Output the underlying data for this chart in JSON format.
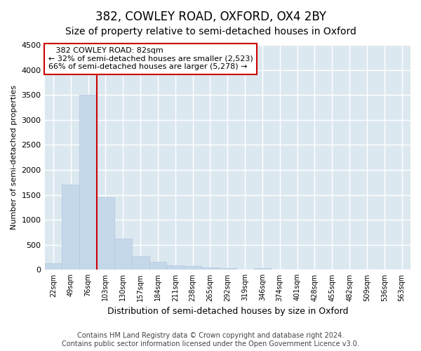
{
  "title": "382, COWLEY ROAD, OXFORD, OX4 2BY",
  "subtitle": "Size of property relative to semi-detached houses in Oxford",
  "xlabel": "Distribution of semi-detached houses by size in Oxford",
  "ylabel": "Number of semi-detached properties",
  "categories": [
    "22sqm",
    "49sqm",
    "76sqm",
    "103sqm",
    "130sqm",
    "157sqm",
    "184sqm",
    "211sqm",
    "238sqm",
    "265sqm",
    "292sqm",
    "319sqm",
    "346sqm",
    "374sqm",
    "401sqm",
    "428sqm",
    "455sqm",
    "482sqm",
    "509sqm",
    "536sqm",
    "563sqm"
  ],
  "values": [
    130,
    1700,
    3500,
    1450,
    620,
    270,
    160,
    90,
    75,
    50,
    40,
    0,
    40,
    0,
    0,
    0,
    0,
    0,
    0,
    0,
    0
  ],
  "bar_color": "#c5d8ea",
  "bar_edge_color": "#b0c8dc",
  "red_line_index": 2,
  "annotation_title": "382 COWLEY ROAD: 82sqm",
  "annotation_line1": "← 32% of semi-detached houses are smaller (2,523)",
  "annotation_line2": "66% of semi-detached houses are larger (5,278) →",
  "ylim": [
    0,
    4500
  ],
  "yticks": [
    0,
    500,
    1000,
    1500,
    2000,
    2500,
    3000,
    3500,
    4000,
    4500
  ],
  "footer_line1": "Contains HM Land Registry data © Crown copyright and database right 2024.",
  "footer_line2": "Contains public sector information licensed under the Open Government Licence v3.0.",
  "fig_bg_color": "#ffffff",
  "plot_bg_color": "#dce8f0",
  "grid_color": "#ffffff",
  "annotation_box_facecolor": "#ffffff",
  "annotation_box_edgecolor": "#cc0000",
  "red_line_color": "#cc0000",
  "title_fontsize": 12,
  "subtitle_fontsize": 10,
  "ylabel_fontsize": 8,
  "xlabel_fontsize": 9,
  "footer_fontsize": 7
}
